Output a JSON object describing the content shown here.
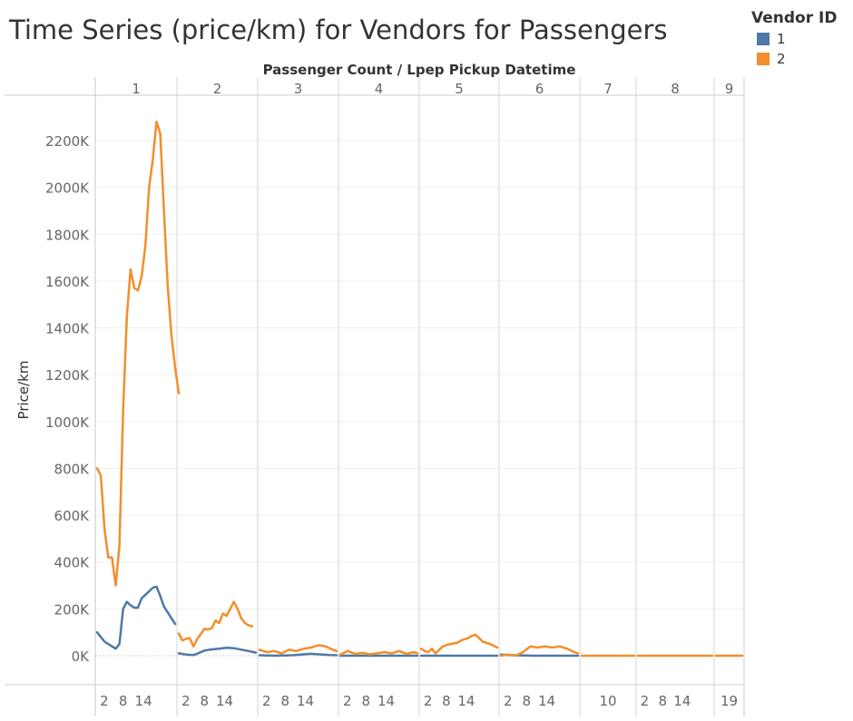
{
  "title": "Time Series (price/km) for Vendors for Passengers",
  "legend": {
    "title": "Vendor ID",
    "items": [
      {
        "label": "1",
        "color": "#4e79a7"
      },
      {
        "label": "2",
        "color": "#f28e2b"
      }
    ]
  },
  "chart_data": {
    "type": "line",
    "title": "Time Series (price/km) for Vendors for Passengers",
    "column_header": "Passenger Count  /  Lpep Pickup Datetime",
    "ylabel": "Price/km",
    "ylim": [
      -20000,
      2380000
    ],
    "yticks": [
      0,
      200000,
      400000,
      600000,
      800000,
      1000000,
      1200000,
      1400000,
      1600000,
      1800000,
      2000000,
      2200000
    ],
    "ytick_labels": [
      "0K",
      "200K",
      "400K",
      "600K",
      "800K",
      "1000K",
      "1200K",
      "1400K",
      "1600K",
      "1800K",
      "2000K",
      "2200K"
    ],
    "grid": true,
    "legend_position": "top-right",
    "panels": [
      {
        "passenger_count": "1",
        "x_tick_labels": [
          "2",
          "8",
          "14"
        ],
        "series": [
          {
            "name": "1",
            "points": [
              [
                1,
                100000
              ],
              [
                2,
                80000
              ],
              [
                3,
                60000
              ],
              [
                4,
                50000
              ],
              [
                5,
                40000
              ],
              [
                6,
                30000
              ],
              [
                7,
                50000
              ],
              [
                8,
                200000
              ],
              [
                9,
                230000
              ],
              [
                10,
                215000
              ],
              [
                11,
                205000
              ],
              [
                12,
                205000
              ],
              [
                13,
                245000
              ],
              [
                14,
                260000
              ],
              [
                15,
                275000
              ],
              [
                16,
                290000
              ],
              [
                17,
                295000
              ],
              [
                18,
                255000
              ],
              [
                19,
                210000
              ],
              [
                20,
                185000
              ],
              [
                21,
                160000
              ],
              [
                22,
                135000
              ]
            ]
          },
          {
            "name": "2",
            "points": [
              [
                1,
                800000
              ],
              [
                2,
                770000
              ],
              [
                3,
                540000
              ],
              [
                4,
                420000
              ],
              [
                5,
                420000
              ],
              [
                6,
                300000
              ],
              [
                7,
                470000
              ],
              [
                8,
                1050000
              ],
              [
                9,
                1450000
              ],
              [
                10,
                1650000
              ],
              [
                11,
                1570000
              ],
              [
                12,
                1560000
              ],
              [
                13,
                1620000
              ],
              [
                14,
                1750000
              ],
              [
                15,
                2000000
              ],
              [
                16,
                2120000
              ],
              [
                17,
                2280000
              ],
              [
                18,
                2230000
              ],
              [
                19,
                1900000
              ],
              [
                20,
                1580000
              ],
              [
                21,
                1370000
              ],
              [
                22,
                1230000
              ],
              [
                23,
                1120000
              ]
            ]
          }
        ]
      },
      {
        "passenger_count": "2",
        "x_tick_labels": [
          "2",
          "8",
          "14"
        ],
        "series": [
          {
            "name": "1",
            "points": [
              [
                1,
                10000
              ],
              [
                3,
                5000
              ],
              [
                5,
                3000
              ],
              [
                6,
                8000
              ],
              [
                8,
                22000
              ],
              [
                10,
                27000
              ],
              [
                12,
                30000
              ],
              [
                14,
                34000
              ],
              [
                16,
                32000
              ],
              [
                18,
                26000
              ],
              [
                20,
                20000
              ],
              [
                22,
                13000
              ]
            ]
          },
          {
            "name": "2",
            "points": [
              [
                1,
                95000
              ],
              [
                2,
                65000
              ],
              [
                3,
                72000
              ],
              [
                4,
                75000
              ],
              [
                5,
                40000
              ],
              [
                6,
                70000
              ],
              [
                8,
                115000
              ],
              [
                9,
                112000
              ],
              [
                10,
                118000
              ],
              [
                11,
                150000
              ],
              [
                12,
                140000
              ],
              [
                13,
                180000
              ],
              [
                14,
                170000
              ],
              [
                15,
                200000
              ],
              [
                16,
                230000
              ],
              [
                17,
                200000
              ],
              [
                18,
                160000
              ],
              [
                19,
                140000
              ],
              [
                20,
                130000
              ],
              [
                21,
                125000
              ]
            ]
          }
        ]
      },
      {
        "passenger_count": "3",
        "x_tick_labels": [
          "2",
          "8",
          "14"
        ],
        "series": [
          {
            "name": "1",
            "points": [
              [
                1,
                2000
              ],
              [
                5,
                0
              ],
              [
                10,
                2000
              ],
              [
                15,
                8000
              ],
              [
                20,
                3000
              ],
              [
                22,
                2000
              ]
            ]
          },
          {
            "name": "2",
            "points": [
              [
                1,
                25000
              ],
              [
                3,
                15000
              ],
              [
                5,
                20000
              ],
              [
                7,
                10000
              ],
              [
                9,
                25000
              ],
              [
                11,
                20000
              ],
              [
                13,
                30000
              ],
              [
                15,
                35000
              ],
              [
                17,
                45000
              ],
              [
                19,
                40000
              ],
              [
                21,
                25000
              ],
              [
                22,
                20000
              ]
            ]
          }
        ]
      },
      {
        "passenger_count": "4",
        "x_tick_labels": [
          "2",
          "8",
          "14"
        ],
        "series": [
          {
            "name": "1",
            "points": [
              [
                1,
                0
              ],
              [
                10,
                0
              ],
              [
                22,
                0
              ]
            ]
          },
          {
            "name": "2",
            "points": [
              [
                1,
                5000
              ],
              [
                3,
                20000
              ],
              [
                5,
                8000
              ],
              [
                7,
                12000
              ],
              [
                9,
                6000
              ],
              [
                11,
                10000
              ],
              [
                13,
                15000
              ],
              [
                15,
                10000
              ],
              [
                17,
                20000
              ],
              [
                19,
                8000
              ],
              [
                21,
                15000
              ],
              [
                22,
                10000
              ]
            ]
          }
        ]
      },
      {
        "passenger_count": "5",
        "x_tick_labels": [
          "2",
          "8",
          "14"
        ],
        "series": [
          {
            "name": "1",
            "points": [
              [
                1,
                0
              ],
              [
                10,
                0
              ],
              [
                22,
                0
              ]
            ]
          },
          {
            "name": "2",
            "points": [
              [
                1,
                30000
              ],
              [
                2,
                20000
              ],
              [
                3,
                15000
              ],
              [
                4,
                30000
              ],
              [
                5,
                10000
              ],
              [
                7,
                40000
              ],
              [
                9,
                50000
              ],
              [
                11,
                55000
              ],
              [
                12,
                65000
              ],
              [
                14,
                75000
              ],
              [
                15,
                85000
              ],
              [
                16,
                90000
              ],
              [
                17,
                75000
              ],
              [
                18,
                60000
              ],
              [
                20,
                50000
              ],
              [
                22,
                35000
              ]
            ]
          }
        ]
      },
      {
        "passenger_count": "6",
        "x_tick_labels": [
          "2",
          "8",
          "14"
        ],
        "series": [
          {
            "name": "1",
            "points": [
              [
                1,
                5000
              ],
              [
                3,
                3000
              ],
              [
                5,
                2000
              ],
              [
                10,
                0
              ],
              [
                22,
                0
              ]
            ]
          },
          {
            "name": "2",
            "points": [
              [
                1,
                0
              ],
              [
                3,
                5000
              ],
              [
                5,
                0
              ],
              [
                7,
                15000
              ],
              [
                9,
                40000
              ],
              [
                11,
                35000
              ],
              [
                13,
                40000
              ],
              [
                15,
                35000
              ],
              [
                17,
                40000
              ],
              [
                19,
                30000
              ],
              [
                21,
                15000
              ],
              [
                22,
                10000
              ]
            ]
          }
        ]
      },
      {
        "passenger_count": "7",
        "x_tick_labels": [
          "10"
        ],
        "series": [
          {
            "name": "2",
            "points": [
              [
                1,
                0
              ],
              [
                22,
                0
              ]
            ]
          }
        ]
      },
      {
        "passenger_count": "8",
        "x_tick_labels": [
          "2",
          "8",
          "14"
        ],
        "series": [
          {
            "name": "2",
            "points": [
              [
                1,
                0
              ],
              [
                22,
                0
              ]
            ]
          }
        ]
      },
      {
        "passenger_count": "9",
        "x_tick_labels": [
          "19"
        ],
        "series": [
          {
            "name": "2",
            "points": [
              [
                1,
                0
              ],
              [
                22,
                0
              ]
            ]
          }
        ]
      }
    ]
  }
}
